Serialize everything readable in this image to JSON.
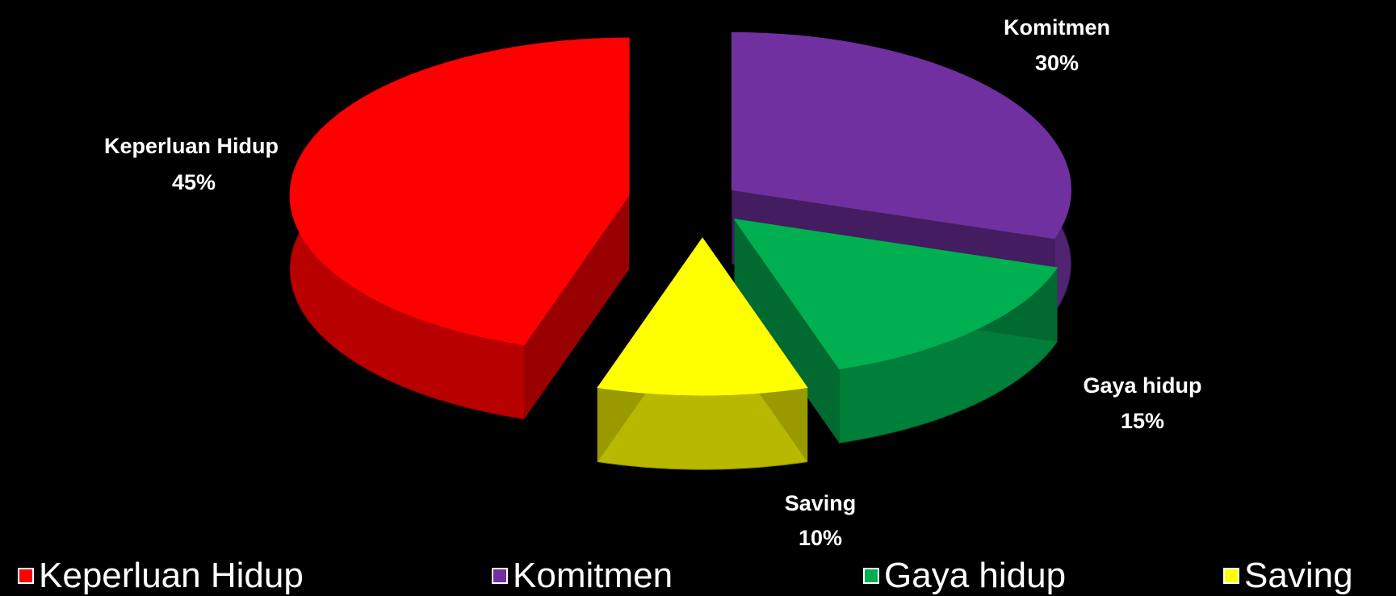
{
  "chart_data": {
    "type": "pie",
    "title": "",
    "categories": [
      "Keperluan Hidup",
      "Komitmen",
      "Gaya hidup",
      "Saving"
    ],
    "values": [
      45,
      30,
      15,
      10
    ],
    "unit": "%",
    "data_labels": [
      {
        "name": "Keperluan Hidup",
        "value": "45%"
      },
      {
        "name": "Komitmen",
        "value": "30%"
      },
      {
        "name": "Gaya hidup",
        "value": "15%"
      },
      {
        "name": "Saving",
        "value": "10%"
      }
    ],
    "colors": [
      "#ff0000",
      "#7030a0",
      "#00b050",
      "#ffff00"
    ],
    "legend": {
      "placement": "bottom",
      "items": [
        "Keperluan Hidup",
        "Komitmen",
        "Gaya hidup",
        "Saving"
      ]
    },
    "style": "3d-exploded"
  }
}
